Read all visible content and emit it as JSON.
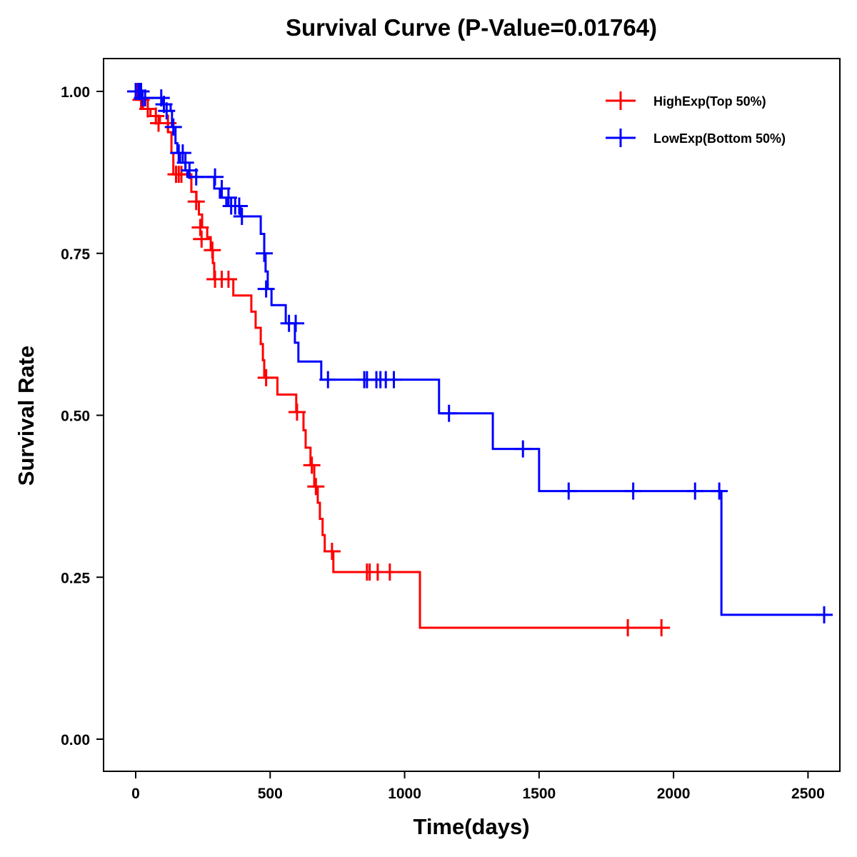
{
  "chart_data": {
    "type": "line",
    "subtype": "kaplan-meier-step",
    "title": "Survival Curve (P-Value=0.01764)",
    "xlabel": "Time(days)",
    "ylabel": "Survival Rate",
    "xlim": [
      -110,
      2620
    ],
    "ylim": [
      -0.05,
      1.05
    ],
    "xticks": [
      0,
      500,
      1000,
      1500,
      2000,
      2500
    ],
    "xtick_labels": [
      "0",
      "500",
      "1000",
      "1500",
      "2000",
      "2500"
    ],
    "yticks": [
      0.0,
      0.25,
      0.5,
      0.75,
      1.0
    ],
    "ytick_labels": [
      "0.00",
      "0.25",
      "0.50",
      "0.75",
      "1.00"
    ],
    "grid": false,
    "legend_position": "top-right",
    "series": [
      {
        "name": "HighExp(Top 50%)",
        "color": "#ff0000",
        "steps": [
          [
            0,
            1.0
          ],
          [
            15,
            0.987
          ],
          [
            27,
            0.973
          ],
          [
            55,
            0.962
          ],
          [
            90,
            0.951
          ],
          [
            120,
            0.937
          ],
          [
            133,
            0.905
          ],
          [
            140,
            0.872
          ],
          [
            207,
            0.845
          ],
          [
            226,
            0.83
          ],
          [
            235,
            0.81
          ],
          [
            247,
            0.79
          ],
          [
            266,
            0.775
          ],
          [
            279,
            0.755
          ],
          [
            287,
            0.735
          ],
          [
            292,
            0.71
          ],
          [
            363,
            0.685
          ],
          [
            430,
            0.66
          ],
          [
            446,
            0.635
          ],
          [
            465,
            0.61
          ],
          [
            473,
            0.585
          ],
          [
            478,
            0.558
          ],
          [
            527,
            0.532
          ],
          [
            597,
            0.505
          ],
          [
            624,
            0.477
          ],
          [
            632,
            0.45
          ],
          [
            650,
            0.423
          ],
          [
            664,
            0.39
          ],
          [
            677,
            0.365
          ],
          [
            685,
            0.34
          ],
          [
            695,
            0.315
          ],
          [
            703,
            0.29
          ],
          [
            735,
            0.258
          ],
          [
            1057,
            0.172
          ]
        ],
        "end_time": 1978,
        "censored": [
          [
            5,
            1.0
          ],
          [
            20,
            0.987
          ],
          [
            45,
            0.973
          ],
          [
            75,
            0.962
          ],
          [
            85,
            0.951
          ],
          [
            120,
            0.951
          ],
          [
            150,
            0.872
          ],
          [
            160,
            0.872
          ],
          [
            170,
            0.872
          ],
          [
            225,
            0.83
          ],
          [
            240,
            0.79
          ],
          [
            245,
            0.772
          ],
          [
            285,
            0.755
          ],
          [
            295,
            0.71
          ],
          [
            320,
            0.71
          ],
          [
            345,
            0.71
          ],
          [
            485,
            0.558
          ],
          [
            600,
            0.505
          ],
          [
            655,
            0.423
          ],
          [
            670,
            0.39
          ],
          [
            730,
            0.29
          ],
          [
            860,
            0.258
          ],
          [
            870,
            0.258
          ],
          [
            900,
            0.258
          ],
          [
            945,
            0.258
          ],
          [
            1830,
            0.172
          ],
          [
            1955,
            0.172
          ]
        ]
      },
      {
        "name": "LowExp(Bottom 50%)",
        "color": "#0000ff",
        "steps": [
          [
            0,
            1.0
          ],
          [
            22,
            0.99
          ],
          [
            98,
            0.98
          ],
          [
            130,
            0.97
          ],
          [
            135,
            0.945
          ],
          [
            148,
            0.92
          ],
          [
            155,
            0.905
          ],
          [
            165,
            0.89
          ],
          [
            185,
            0.878
          ],
          [
            192,
            0.868
          ],
          [
            292,
            0.85
          ],
          [
            313,
            0.836
          ],
          [
            337,
            0.823
          ],
          [
            390,
            0.807
          ],
          [
            465,
            0.78
          ],
          [
            478,
            0.75
          ],
          [
            483,
            0.722
          ],
          [
            491,
            0.695
          ],
          [
            505,
            0.67
          ],
          [
            558,
            0.642
          ],
          [
            592,
            0.612
          ],
          [
            605,
            0.583
          ],
          [
            690,
            0.555
          ],
          [
            1128,
            0.503
          ],
          [
            1328,
            0.448
          ],
          [
            1500,
            0.383
          ],
          [
            2178,
            0.192
          ]
        ],
        "end_time": 2575,
        "censored": [
          [
            0,
            1.0
          ],
          [
            10,
            1.0
          ],
          [
            15,
            1.0
          ],
          [
            20,
            1.0
          ],
          [
            25,
            0.99
          ],
          [
            35,
            0.99
          ],
          [
            95,
            0.99
          ],
          [
            105,
            0.98
          ],
          [
            115,
            0.97
          ],
          [
            140,
            0.945
          ],
          [
            160,
            0.905
          ],
          [
            175,
            0.905
          ],
          [
            185,
            0.89
          ],
          [
            200,
            0.878
          ],
          [
            225,
            0.868
          ],
          [
            295,
            0.868
          ],
          [
            320,
            0.85
          ],
          [
            345,
            0.836
          ],
          [
            355,
            0.823
          ],
          [
            370,
            0.823
          ],
          [
            385,
            0.823
          ],
          [
            395,
            0.807
          ],
          [
            478,
            0.75
          ],
          [
            485,
            0.695
          ],
          [
            570,
            0.642
          ],
          [
            595,
            0.642
          ],
          [
            715,
            0.555
          ],
          [
            850,
            0.555
          ],
          [
            860,
            0.555
          ],
          [
            895,
            0.555
          ],
          [
            910,
            0.555
          ],
          [
            930,
            0.555
          ],
          [
            960,
            0.555
          ],
          [
            1165,
            0.503
          ],
          [
            1440,
            0.448
          ],
          [
            1610,
            0.383
          ],
          [
            1850,
            0.383
          ],
          [
            2080,
            0.383
          ],
          [
            2170,
            0.383
          ],
          [
            2560,
            0.192
          ]
        ]
      }
    ]
  }
}
